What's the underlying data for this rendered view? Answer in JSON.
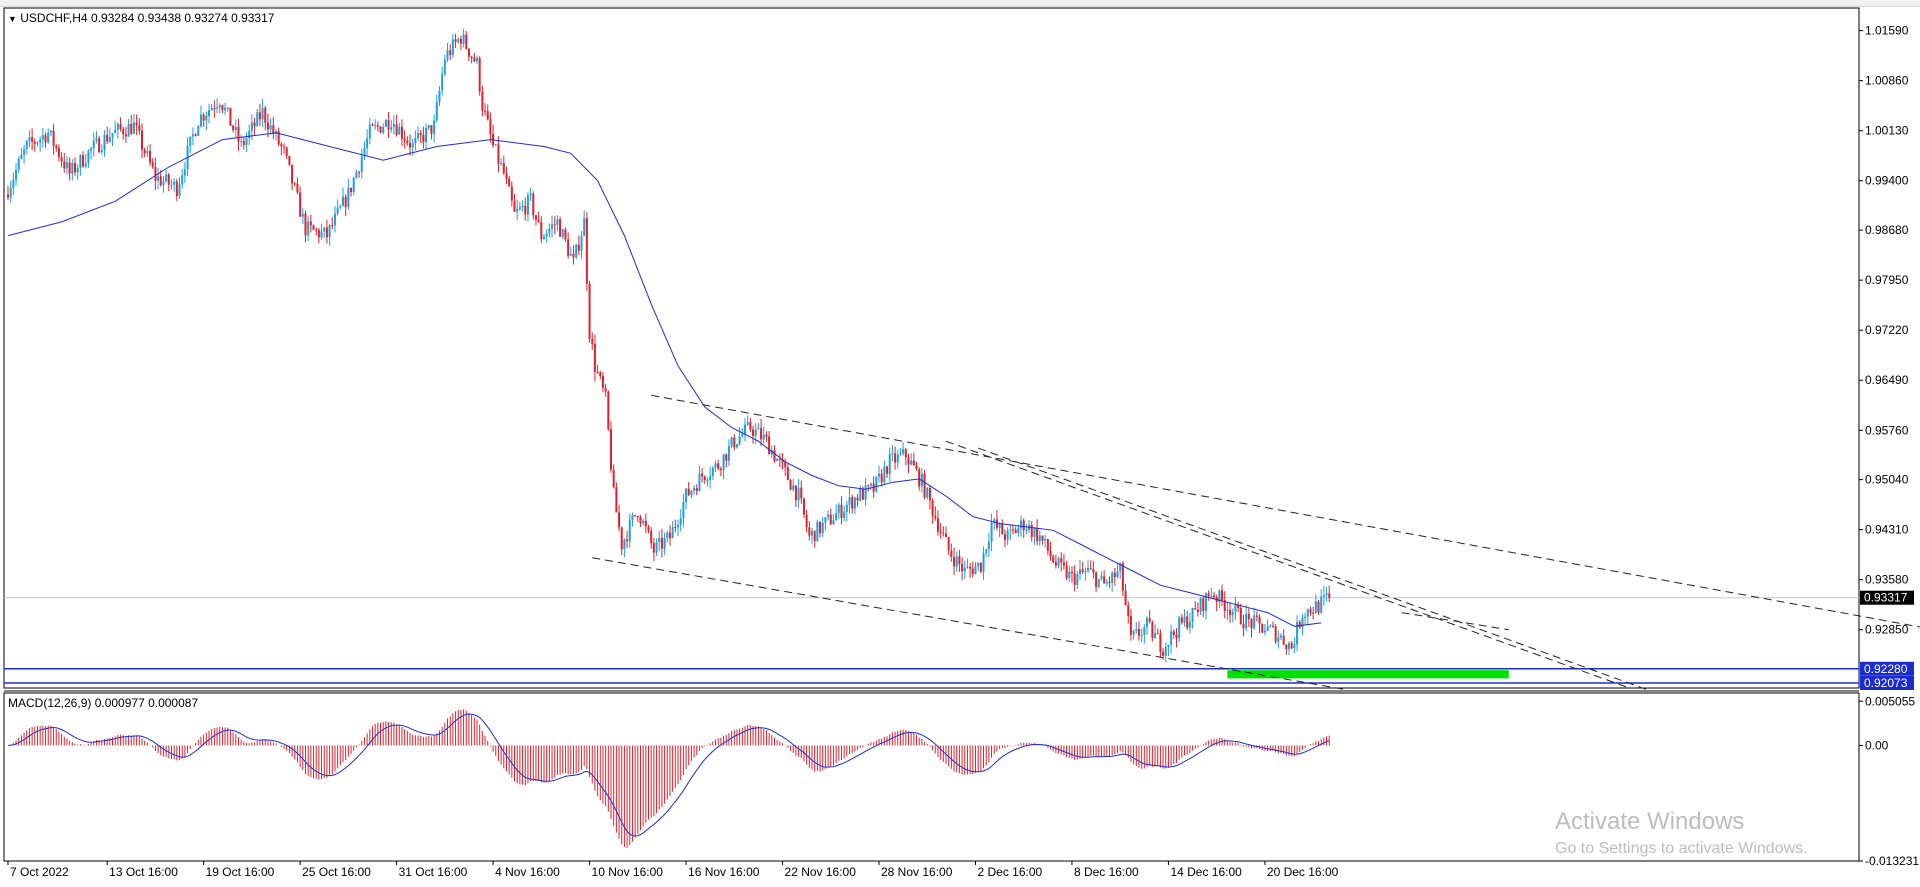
{
  "header": {
    "symbol_line": "USDCHF,H4  0.93284 0.93438 0.93274 0.93317"
  },
  "indicator": {
    "label": "MACD(12,26,9) 0.000977 0.000087"
  },
  "watermark": {
    "line1": "Activate Windows",
    "line2": "Go to Settings to activate Windows."
  },
  "colors": {
    "bull": "#1e9fe0",
    "bear": "#e0202a",
    "ma": "#1f2bd6",
    "support_zone": "#00e000",
    "hline": "#1c2bd0",
    "macd_hist": "#e0202a",
    "macd_signal": "#1f2bd6"
  },
  "chart_data": {
    "type": "candlestick",
    "instrument": "USDCHF",
    "timeframe": "H4",
    "last_price": 0.93317,
    "ylim": [
      0.92,
      1.0192
    ],
    "price_ticks": [
      1.0159,
      1.0086,
      1.0013,
      0.994,
      0.9868,
      0.9795,
      0.9722,
      0.9649,
      0.9576,
      0.9504,
      0.9431,
      0.9358,
      0.9285
    ],
    "price_tick_labels": [
      "1.01590",
      "1.00860",
      "1.00130",
      "0.99400",
      "0.98680",
      "0.97950",
      "0.97220",
      "0.96490",
      "0.95760",
      "0.95040",
      "0.94310",
      "0.93580",
      "0.92850"
    ],
    "price_tags": [
      {
        "label": "0.93317",
        "value": 0.93317,
        "style": "current"
      },
      {
        "label": "0.92280",
        "value": 0.9228,
        "style": "line"
      },
      {
        "label": "0.92073",
        "value": 0.92073,
        "style": "line"
      }
    ],
    "time_labels": [
      "7 Oct 2022",
      "13 Oct 16:00",
      "19 Oct 16:00",
      "25 Oct 16:00",
      "31 Oct 16:00",
      "4 Nov 16:00",
      "10 Nov 16:00",
      "16 Nov 16:00",
      "22 Nov 16:00",
      "28 Nov 16:00",
      "2 Dec 16:00",
      "8 Dec 16:00",
      "14 Dec 16:00",
      "20 Dec 16:00"
    ],
    "time_label_bar_index": [
      0,
      37,
      73,
      109,
      145,
      181,
      217,
      253,
      289,
      325,
      361,
      397,
      433,
      469
    ],
    "bar_count": 494,
    "waypoints": [
      [
        0,
        0.992
      ],
      [
        8,
        0.999
      ],
      [
        16,
        1.001
      ],
      [
        24,
        0.995
      ],
      [
        32,
        0.9985
      ],
      [
        40,
        1.001
      ],
      [
        48,
        1.002
      ],
      [
        56,
        0.9945
      ],
      [
        64,
        0.993
      ],
      [
        72,
        1.003
      ],
      [
        80,
        1.006
      ],
      [
        88,
        0.999
      ],
      [
        96,
        1.004
      ],
      [
        104,
        0.998
      ],
      [
        112,
        0.987
      ],
      [
        120,
        0.986
      ],
      [
        128,
        0.992
      ],
      [
        136,
        1.001
      ],
      [
        144,
        1.003
      ],
      [
        152,
        0.999
      ],
      [
        160,
        1.002
      ],
      [
        164,
        1.012
      ],
      [
        170,
        1.015
      ],
      [
        176,
        1.011
      ],
      [
        178,
        1.005
      ],
      [
        182,
        0.999
      ],
      [
        186,
        0.995
      ],
      [
        190,
        0.989
      ],
      [
        196,
        0.991
      ],
      [
        200,
        0.986
      ],
      [
        206,
        0.988
      ],
      [
        212,
        0.982
      ],
      [
        216,
        0.988
      ],
      [
        218,
        0.972
      ],
      [
        220,
        0.967
      ],
      [
        224,
        0.962
      ],
      [
        227,
        0.948
      ],
      [
        230,
        0.941
      ],
      [
        236,
        0.946
      ],
      [
        242,
        0.94
      ],
      [
        248,
        0.942
      ],
      [
        254,
        0.948
      ],
      [
        260,
        0.951
      ],
      [
        266,
        0.9525
      ],
      [
        272,
        0.956
      ],
      [
        278,
        0.958
      ],
      [
        284,
        0.956
      ],
      [
        290,
        0.952
      ],
      [
        296,
        0.948
      ],
      [
        300,
        0.942
      ],
      [
        306,
        0.944
      ],
      [
        312,
        0.946
      ],
      [
        318,
        0.948
      ],
      [
        324,
        0.949
      ],
      [
        330,
        0.953
      ],
      [
        336,
        0.954
      ],
      [
        342,
        0.95
      ],
      [
        348,
        0.944
      ],
      [
        352,
        0.94
      ],
      [
        358,
        0.937
      ],
      [
        364,
        0.938
      ],
      [
        368,
        0.944
      ],
      [
        374,
        0.942
      ],
      [
        380,
        0.944
      ],
      [
        386,
        0.942
      ],
      [
        392,
        0.938
      ],
      [
        398,
        0.936
      ],
      [
        404,
        0.937
      ],
      [
        410,
        0.935
      ],
      [
        416,
        0.937
      ],
      [
        420,
        0.927
      ],
      [
        426,
        0.929
      ],
      [
        432,
        0.926
      ],
      [
        438,
        0.929
      ],
      [
        444,
        0.931
      ],
      [
        450,
        0.934
      ],
      [
        456,
        0.932
      ],
      [
        462,
        0.93
      ],
      [
        468,
        0.929
      ],
      [
        474,
        0.928
      ],
      [
        480,
        0.926
      ],
      [
        484,
        0.931
      ],
      [
        490,
        0.932
      ],
      [
        494,
        0.9332
      ]
    ],
    "moving_average": [
      [
        0,
        0.986
      ],
      [
        20,
        0.988
      ],
      [
        40,
        0.991
      ],
      [
        60,
        0.996
      ],
      [
        80,
        1.0
      ],
      [
        100,
        1.001
      ],
      [
        120,
        0.999
      ],
      [
        140,
        0.997
      ],
      [
        160,
        0.999
      ],
      [
        180,
        1.0
      ],
      [
        200,
        0.999
      ],
      [
        210,
        0.998
      ],
      [
        220,
        0.994
      ],
      [
        230,
        0.986
      ],
      [
        240,
        0.976
      ],
      [
        250,
        0.967
      ],
      [
        260,
        0.961
      ],
      [
        270,
        0.958
      ],
      [
        280,
        0.956
      ],
      [
        290,
        0.953
      ],
      [
        300,
        0.951
      ],
      [
        310,
        0.9495
      ],
      [
        320,
        0.949
      ],
      [
        330,
        0.95
      ],
      [
        340,
        0.9505
      ],
      [
        350,
        0.948
      ],
      [
        360,
        0.945
      ],
      [
        370,
        0.944
      ],
      [
        380,
        0.9435
      ],
      [
        390,
        0.943
      ],
      [
        400,
        0.941
      ],
      [
        410,
        0.939
      ],
      [
        420,
        0.937
      ],
      [
        430,
        0.935
      ],
      [
        440,
        0.934
      ],
      [
        450,
        0.933
      ],
      [
        460,
        0.932
      ],
      [
        470,
        0.931
      ],
      [
        480,
        0.929
      ],
      [
        490,
        0.9295
      ]
    ],
    "trend_lines": [
      {
        "from": [
          240,
          0.9627
        ],
        "to": [
          740,
          0.927
        ],
        "style": "dashed"
      },
      {
        "from": [
          218,
          0.939
        ],
        "to": [
          500,
          0.9197
        ],
        "style": "dashed"
      },
      {
        "from": [
          350,
          0.956
        ],
        "to": [
          605,
          0.92
        ],
        "style": "dashed"
      },
      {
        "from": [
          362,
          0.955
        ],
        "to": [
          612,
          0.9197
        ],
        "style": "dashed"
      },
      {
        "from": [
          520,
          0.931
        ],
        "to": [
          560,
          0.9285
        ],
        "style": "dashed"
      }
    ],
    "support_zone": {
      "from_bar": 455,
      "to_bar": 560,
      "low": 0.9214,
      "high": 0.9226
    },
    "horizontal_lines": [
      0.9228,
      0.92073
    ],
    "current_price_line": 0.93317,
    "macd": {
      "label": "MACD(12,26,9)",
      "value": 0.000977,
      "signal_value": 8.7e-05,
      "ylim": [
        -0.013231,
        0.006
      ],
      "tick_labels": [
        "0.005055",
        "0.00",
        "-0.013231"
      ],
      "tick_values": [
        0.005055,
        0.0,
        -0.013231
      ]
    }
  }
}
